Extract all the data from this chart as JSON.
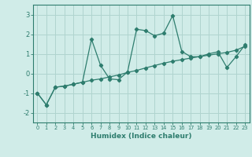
{
  "xlabel": "Humidex (Indice chaleur)",
  "x_values": [
    0,
    1,
    2,
    3,
    4,
    5,
    6,
    7,
    8,
    9,
    10,
    11,
    12,
    13,
    14,
    15,
    16,
    17,
    18,
    19,
    20,
    21,
    22,
    23
  ],
  "y_line1": [
    -1.0,
    -1.6,
    -0.7,
    -0.65,
    -0.55,
    -0.45,
    -0.35,
    -0.28,
    -0.18,
    -0.08,
    0.05,
    0.15,
    0.28,
    0.4,
    0.52,
    0.62,
    0.7,
    0.78,
    0.86,
    0.93,
    1.0,
    1.07,
    1.18,
    1.38
  ],
  "y_line2": [
    -1.0,
    -1.6,
    -0.7,
    -0.65,
    -0.55,
    -0.45,
    1.75,
    0.42,
    -0.28,
    -0.32,
    0.08,
    2.25,
    2.18,
    1.92,
    2.05,
    2.95,
    1.12,
    0.85,
    0.85,
    1.0,
    1.1,
    0.3,
    0.85,
    1.45
  ],
  "line_color": "#2e7d6e",
  "bg_color": "#d0ece8",
  "grid_color": "#b0d4cf",
  "ylim": [
    -2.5,
    3.5
  ],
  "xlim": [
    -0.5,
    23.5
  ],
  "yticks": [
    -2,
    -1,
    0,
    1,
    2,
    3
  ],
  "xticks": [
    0,
    1,
    2,
    3,
    4,
    5,
    6,
    7,
    8,
    9,
    10,
    11,
    12,
    13,
    14,
    15,
    16,
    17,
    18,
    19,
    20,
    21,
    22,
    23
  ]
}
